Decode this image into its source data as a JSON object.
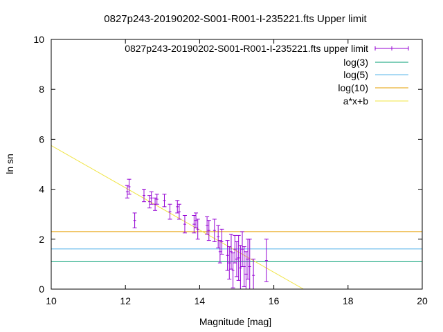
{
  "chart_data": {
    "type": "scatter",
    "title": "0827p243-20190202-S001-R001-I-235221.fts Upper limit",
    "xlabel": "Magnitude [mag]",
    "ylabel": "ln sn",
    "xlim": [
      10,
      20
    ],
    "ylim": [
      0,
      10
    ],
    "xticks": [
      10,
      12,
      14,
      16,
      18,
      20
    ],
    "yticks": [
      0,
      2,
      4,
      6,
      8,
      10
    ],
    "grid": false,
    "legend_position": "top-right",
    "series": [
      {
        "name": "0827p243-20190202-S001-R001-I-235221.fts upper limit",
        "kind": "errorbars",
        "color": "#9400d3",
        "points": [
          {
            "x": 12.05,
            "y": 3.9,
            "err": 0.25
          },
          {
            "x": 12.1,
            "y": 4.1,
            "err": 0.3
          },
          {
            "x": 12.25,
            "y": 2.75,
            "err": 0.3
          },
          {
            "x": 12.5,
            "y": 3.75,
            "err": 0.25
          },
          {
            "x": 12.65,
            "y": 3.5,
            "err": 0.25
          },
          {
            "x": 12.7,
            "y": 3.65,
            "err": 0.25
          },
          {
            "x": 12.8,
            "y": 3.4,
            "err": 0.25
          },
          {
            "x": 12.85,
            "y": 3.6,
            "err": 0.2
          },
          {
            "x": 13.05,
            "y": 3.55,
            "err": 0.25
          },
          {
            "x": 13.2,
            "y": 3.1,
            "err": 0.3
          },
          {
            "x": 13.4,
            "y": 3.3,
            "err": 0.25
          },
          {
            "x": 13.45,
            "y": 3.1,
            "err": 0.3
          },
          {
            "x": 13.6,
            "y": 2.6,
            "err": 0.35
          },
          {
            "x": 13.85,
            "y": 2.6,
            "err": 0.35
          },
          {
            "x": 13.9,
            "y": 2.75,
            "err": 0.3
          },
          {
            "x": 13.95,
            "y": 2.4,
            "err": 0.4
          },
          {
            "x": 14.2,
            "y": 2.55,
            "err": 0.35
          },
          {
            "x": 14.25,
            "y": 2.35,
            "err": 0.4
          },
          {
            "x": 14.4,
            "y": 2.35,
            "err": 0.45
          },
          {
            "x": 14.5,
            "y": 2.1,
            "err": 0.45
          },
          {
            "x": 14.55,
            "y": 1.5,
            "err": 0.45
          },
          {
            "x": 14.6,
            "y": 1.9,
            "err": 0.5
          },
          {
            "x": 14.75,
            "y": 1.35,
            "err": 0.6
          },
          {
            "x": 14.8,
            "y": 1.05,
            "err": 0.65
          },
          {
            "x": 14.85,
            "y": 1.5,
            "err": 0.7
          },
          {
            "x": 14.9,
            "y": 0.75,
            "err": 0.7
          },
          {
            "x": 14.95,
            "y": 1.6,
            "err": 0.55
          },
          {
            "x": 15.0,
            "y": 1.2,
            "err": 0.7
          },
          {
            "x": 15.05,
            "y": 1.25,
            "err": 0.9
          },
          {
            "x": 15.1,
            "y": 0.85,
            "err": 0.9
          },
          {
            "x": 15.15,
            "y": 1.6,
            "err": 0.7
          },
          {
            "x": 15.2,
            "y": 0.9,
            "err": 0.8
          },
          {
            "x": 15.25,
            "y": 0.6,
            "err": 0.9
          },
          {
            "x": 15.3,
            "y": 1.2,
            "err": 0.8
          },
          {
            "x": 15.35,
            "y": 0.9,
            "err": 1.1
          },
          {
            "x": 15.45,
            "y": 0.55,
            "err": 0.65
          },
          {
            "x": 15.8,
            "y": 1.15,
            "err": 0.85
          }
        ]
      },
      {
        "name": "log(3)",
        "kind": "hline",
        "y": 1.0986,
        "color": "#009e73"
      },
      {
        "name": "log(5)",
        "kind": "hline",
        "y": 1.6094,
        "color": "#56b4e9"
      },
      {
        "name": "log(10)",
        "kind": "hline",
        "y": 2.3026,
        "color": "#e69f00"
      },
      {
        "name": "a*x+b",
        "kind": "line",
        "x": [
          10,
          16.8
        ],
        "y": [
          5.75,
          0.0
        ],
        "color": "#f0e442"
      }
    ]
  }
}
